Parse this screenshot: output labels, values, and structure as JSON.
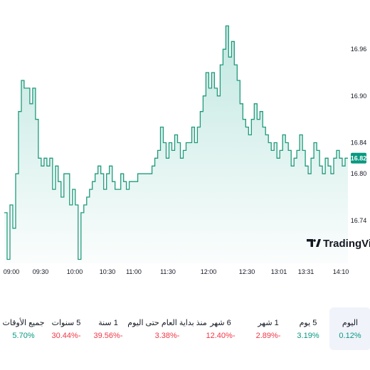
{
  "chart_data": {
    "type": "area",
    "x_ticks": [
      "09:00",
      "09:30",
      "10:00",
      "10:30",
      "11:00",
      "11:30",
      "12:00",
      "12:30",
      "13:01",
      "13:31",
      "14:10"
    ],
    "y_ticks": [
      16.74,
      16.8,
      16.84,
      16.9,
      16.96
    ],
    "ylim": [
      16.685,
      17.005
    ],
    "current_price": "16.82",
    "series": [
      {
        "values": [
          16.75,
          16.69,
          16.76,
          16.73,
          16.8,
          16.88,
          16.92,
          16.91,
          16.91,
          16.89,
          16.91,
          16.87,
          16.82,
          16.81,
          16.82,
          16.81,
          16.82,
          16.78,
          16.81,
          16.79,
          16.77,
          16.8,
          16.8,
          16.76,
          16.78,
          16.76,
          16.69,
          16.75,
          16.76,
          16.77,
          16.78,
          16.79,
          16.8,
          16.81,
          16.8,
          16.78,
          16.8,
          16.81,
          16.79,
          16.78,
          16.78,
          16.8,
          16.79,
          16.78,
          16.79,
          16.79,
          16.79,
          16.8,
          16.8,
          16.8,
          16.8,
          16.8,
          16.81,
          16.82,
          16.83,
          16.86,
          16.84,
          16.82,
          16.84,
          16.83,
          16.85,
          16.84,
          16.82,
          16.83,
          16.84,
          16.84,
          16.86,
          16.84,
          16.86,
          16.88,
          16.9,
          16.93,
          16.91,
          16.93,
          16.91,
          16.9,
          16.94,
          16.96,
          16.99,
          16.95,
          16.97,
          16.94,
          16.92,
          16.89,
          16.87,
          16.86,
          16.85,
          16.87,
          16.89,
          16.87,
          16.88,
          16.86,
          16.85,
          16.84,
          16.83,
          16.84,
          16.82,
          16.83,
          16.85,
          16.84,
          16.83,
          16.81,
          16.82,
          16.83,
          16.85,
          16.83,
          16.81,
          16.8,
          16.82,
          16.84,
          16.83,
          16.81,
          16.8,
          16.82,
          16.81,
          16.8,
          16.82,
          16.83,
          16.82,
          16.81,
          16.82,
          16.82
        ],
        "color": "#1e9a7a"
      }
    ],
    "grid": false,
    "watermark": "TradingView"
  },
  "periods": [
    {
      "label": "اليوم",
      "value": "0.12%",
      "color": "#089981",
      "active": true
    },
    {
      "label": "5 يوم",
      "value": "3.19%",
      "color": "#089981",
      "active": false
    },
    {
      "label": "1 شهر",
      "value": "2.89%-",
      "color": "#f23645",
      "active": false
    },
    {
      "label": "6 شهر",
      "value": "12.40%-",
      "color": "#f23645",
      "active": false
    },
    {
      "label": "منذ بداية العام حتى اليوم",
      "value": "3.38%-",
      "color": "#f23645",
      "active": false
    },
    {
      "label": "1 سنة",
      "value": "39.56%-",
      "color": "#f23645",
      "active": false
    },
    {
      "label": "5 سنوات",
      "value": "30.44%-",
      "color": "#f23645",
      "active": false
    },
    {
      "label": "جميع الأوقات",
      "value": "5.70%",
      "color": "#089981",
      "active": false
    }
  ]
}
